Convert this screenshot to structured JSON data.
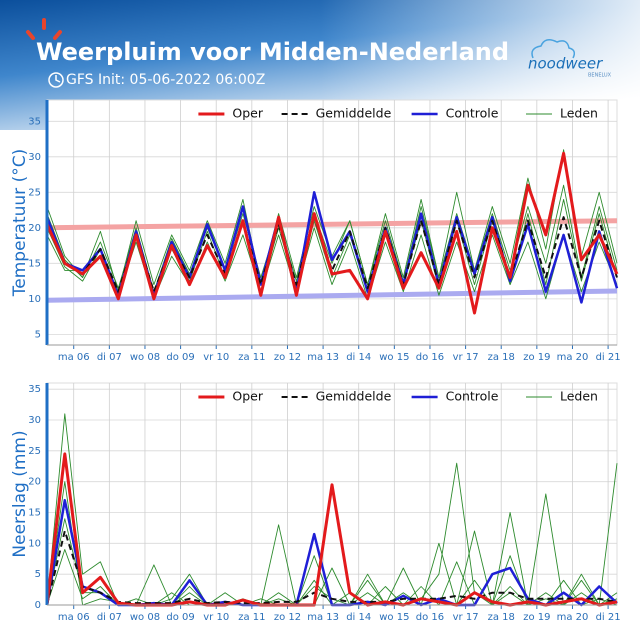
{
  "header": {
    "title": "Weerpluim voor Midden-Nederland",
    "subtitle": "GFS Init: 05-06-2022 06:00Z",
    "logo": "noodweer",
    "logo_sub": "BENELUX"
  },
  "chart_data": [
    {
      "type": "line",
      "ylabel": "Temperatuur (°C)",
      "x": [
        0,
        12,
        24,
        36,
        48,
        60,
        72,
        84,
        96,
        108,
        120,
        132,
        144,
        156,
        168,
        180,
        192,
        204,
        216,
        228,
        240,
        252,
        264,
        276,
        288,
        300,
        312,
        324,
        336,
        348,
        360,
        372,
        384
      ],
      "xlim": [
        0,
        384
      ],
      "ylim": [
        3.5,
        38
      ],
      "yticks": [
        5,
        10,
        15,
        20,
        25,
        30,
        35
      ],
      "grid": true,
      "legend": "upper right",
      "xticks": [
        {
          "value": 18,
          "label": "ma 06"
        },
        {
          "value": 42,
          "label": "di 07"
        },
        {
          "value": 66,
          "label": "wo 08"
        },
        {
          "value": 90,
          "label": "do 09"
        },
        {
          "value": 114,
          "label": "vr 10"
        },
        {
          "value": 138,
          "label": "za 11"
        },
        {
          "value": 162,
          "label": "zo 12"
        },
        {
          "value": 186,
          "label": "ma 13"
        },
        {
          "value": 210,
          "label": "di 14"
        },
        {
          "value": 234,
          "label": "wo 15"
        },
        {
          "value": 258,
          "label": "do 16"
        },
        {
          "value": 282,
          "label": "vr 17"
        },
        {
          "value": 306,
          "label": "za 18"
        },
        {
          "value": 330,
          "label": "zo 19"
        },
        {
          "value": 354,
          "label": "ma 20"
        },
        {
          "value": 378,
          "label": "di 21"
        }
      ],
      "series": [
        {
          "name": "Oper",
          "color": "#e31a1c",
          "width": 3,
          "values": [
            20.5,
            15,
            13.5,
            16,
            10,
            19,
            10,
            17.5,
            12,
            17.5,
            13,
            21,
            10.5,
            21.5,
            10.5,
            22,
            13.5,
            14,
            10,
            19.5,
            11.5,
            16.5,
            11.5,
            19.5,
            8,
            20,
            13,
            26,
            19,
            30.5,
            15.5,
            19,
            13.5
          ]
        },
        {
          "name": "Gemiddelde",
          "color": "#111111",
          "width": 2,
          "dash": true,
          "values": [
            20.5,
            15,
            13.5,
            17,
            11,
            19,
            11,
            17.5,
            13,
            19,
            13.5,
            21,
            12,
            20.5,
            12,
            21.5,
            14,
            19.5,
            11.5,
            20,
            12,
            21,
            12,
            21,
            13,
            21,
            13,
            21,
            13,
            21.5,
            13,
            21,
            13
          ]
        },
        {
          "name": "Controle",
          "color": "#1f1fd6",
          "width": 2.5,
          "values": [
            21.5,
            15,
            14,
            17,
            10.5,
            19.5,
            10.5,
            18,
            13,
            20.5,
            14,
            23,
            12,
            21.5,
            11,
            25,
            15.5,
            19.5,
            11,
            20,
            12,
            22,
            12,
            21.5,
            13.5,
            21.5,
            12.5,
            20.5,
            11,
            19,
            9.5,
            19.5,
            11.5
          ]
        },
        {
          "name": "Leden",
          "color": "#2e8b2e",
          "width": 0.9,
          "values": [
            23,
            16,
            13,
            19.5,
            11,
            21,
            12,
            19,
            14,
            21,
            15,
            24,
            12,
            22,
            13,
            23,
            16,
            21,
            12,
            22,
            13,
            24,
            13,
            25,
            14,
            23,
            15,
            27,
            17,
            31,
            16,
            25,
            15
          ]
        },
        {
          "color": "#2e8b2e",
          "width": 0.9,
          "values": [
            19,
            14,
            14,
            16,
            10.5,
            18,
            10,
            16,
            12,
            18,
            12.5,
            19,
            11,
            19,
            11,
            20,
            12,
            18,
            10,
            18,
            11,
            19,
            10.5,
            18,
            11,
            19,
            12,
            18,
            10,
            19,
            11,
            18,
            12
          ]
        },
        {
          "color": "#2e8b2e",
          "width": 0.9,
          "values": [
            22,
            15.5,
            13,
            18,
            11.5,
            20,
            11,
            18.5,
            13.5,
            20,
            14,
            22,
            13,
            21,
            12.5,
            22,
            15,
            21,
            12,
            21,
            12.5,
            23,
            13,
            22,
            14,
            22,
            14,
            23,
            15,
            26,
            13,
            23,
            14
          ]
        },
        {
          "color": "#2e8b2e",
          "width": 0.9,
          "values": [
            20,
            14.5,
            12.5,
            17,
            10,
            19,
            10.5,
            17,
            12.5,
            19.5,
            13,
            21,
            11,
            20,
            11.5,
            21,
            13,
            19,
            11,
            20,
            12,
            21,
            11.5,
            21,
            12,
            21,
            12,
            22,
            12,
            24,
            12.5,
            22,
            13
          ]
        },
        {
          "color": "#f4a3a3",
          "width": 5,
          "x": [
            0,
            384
          ],
          "values": [
            20,
            21
          ]
        },
        {
          "color": "#aaaaf0",
          "width": 5,
          "x": [
            0,
            384
          ],
          "values": [
            9.8,
            11.1
          ]
        }
      ]
    },
    {
      "type": "line",
      "ylabel": "Neerslag (mm)",
      "x": [
        0,
        12,
        24,
        36,
        48,
        60,
        72,
        84,
        96,
        108,
        120,
        132,
        144,
        156,
        168,
        180,
        192,
        204,
        216,
        228,
        240,
        252,
        264,
        276,
        288,
        300,
        312,
        324,
        336,
        348,
        360,
        372,
        384
      ],
      "xlim": [
        0,
        384
      ],
      "ylim": [
        0,
        36
      ],
      "yticks": [
        0,
        5,
        10,
        15,
        20,
        25,
        30,
        35
      ],
      "grid": true,
      "legend": "upper right",
      "xticks": [
        {
          "value": 18,
          "label": "ma 06"
        },
        {
          "value": 42,
          "label": "di 07"
        },
        {
          "value": 66,
          "label": "wo 08"
        },
        {
          "value": 90,
          "label": "do 09"
        },
        {
          "value": 114,
          "label": "vr 10"
        },
        {
          "value": 138,
          "label": "za 11"
        },
        {
          "value": 162,
          "label": "zo 12"
        },
        {
          "value": 186,
          "label": "ma 13"
        },
        {
          "value": 210,
          "label": "di 14"
        },
        {
          "value": 234,
          "label": "wo 15"
        },
        {
          "value": 258,
          "label": "do 16"
        },
        {
          "value": 282,
          "label": "vr 17"
        },
        {
          "value": 306,
          "label": "za 18"
        },
        {
          "value": 330,
          "label": "zo 19"
        },
        {
          "value": 354,
          "label": "ma 20"
        },
        {
          "value": 378,
          "label": "di 21"
        }
      ],
      "series": [
        {
          "name": "Oper",
          "color": "#e31a1c",
          "width": 3,
          "values": [
            0,
            24.5,
            2,
            4.5,
            0.3,
            0,
            0,
            0,
            0.5,
            0,
            0,
            0.8,
            0,
            0,
            0,
            0,
            19.5,
            2,
            0,
            0.5,
            0,
            1,
            0.5,
            0,
            2,
            0.5,
            0,
            0.5,
            0,
            0.5,
            1,
            0,
            0.5
          ]
        },
        {
          "name": "Gemiddelde",
          "color": "#111111",
          "width": 2,
          "dash": true,
          "values": [
            0,
            12,
            3,
            2,
            0.5,
            0.3,
            0.3,
            0.3,
            1,
            0.3,
            0.5,
            0.3,
            0.3,
            0.5,
            0.5,
            2,
            1,
            0.5,
            0.5,
            0.5,
            1,
            1,
            1,
            1.5,
            1,
            2,
            2,
            1,
            1,
            1,
            1,
            1,
            0.5
          ]
        },
        {
          "name": "Controle",
          "color": "#1f1fd6",
          "width": 2.5,
          "values": [
            0,
            17,
            3,
            2,
            0,
            0,
            0.3,
            0,
            4,
            0,
            0.5,
            0,
            0,
            0,
            0,
            11.5,
            0,
            0,
            0.5,
            0,
            1.5,
            0,
            1,
            0,
            0,
            5,
            6,
            1,
            0,
            2,
            0,
            3,
            0.3
          ]
        },
        {
          "name": "Leden",
          "color": "#2e8b2e",
          "width": 0.9,
          "values": [
            0,
            31,
            5,
            7,
            0,
            1,
            0,
            2,
            0,
            0,
            0.5,
            0,
            1,
            0,
            0,
            4,
            0,
            2,
            0,
            3,
            0,
            1,
            5,
            23,
            2,
            0,
            8,
            0,
            1,
            0,
            2,
            0,
            1
          ]
        },
        {
          "color": "#2e8b2e",
          "width": 0.9,
          "values": [
            0,
            9,
            1,
            3,
            0,
            0,
            6.5,
            0,
            2,
            0,
            0,
            1,
            0,
            13,
            0,
            0,
            6,
            0,
            5,
            0,
            2,
            0,
            10,
            0,
            4,
            0,
            2,
            0,
            18,
            0,
            4,
            0,
            23
          ]
        },
        {
          "color": "#2e8b2e",
          "width": 0.9,
          "values": [
            0,
            20,
            0,
            1,
            0.5,
            0,
            0,
            1,
            5,
            0,
            2,
            0,
            0,
            2,
            0,
            3,
            1,
            0,
            2,
            0,
            6,
            0,
            1,
            0,
            12,
            0,
            3,
            0,
            2,
            0,
            5,
            0,
            2
          ]
        },
        {
          "color": "#2e8b2e",
          "width": 0.9,
          "values": [
            0,
            14,
            2,
            2,
            0,
            0,
            0,
            0,
            3,
            0,
            0,
            0,
            0,
            1,
            0,
            8,
            0,
            0,
            4,
            0,
            0,
            3,
            0,
            7,
            0,
            0,
            15,
            0,
            0,
            4,
            0,
            1,
            0
          ]
        }
      ]
    }
  ]
}
